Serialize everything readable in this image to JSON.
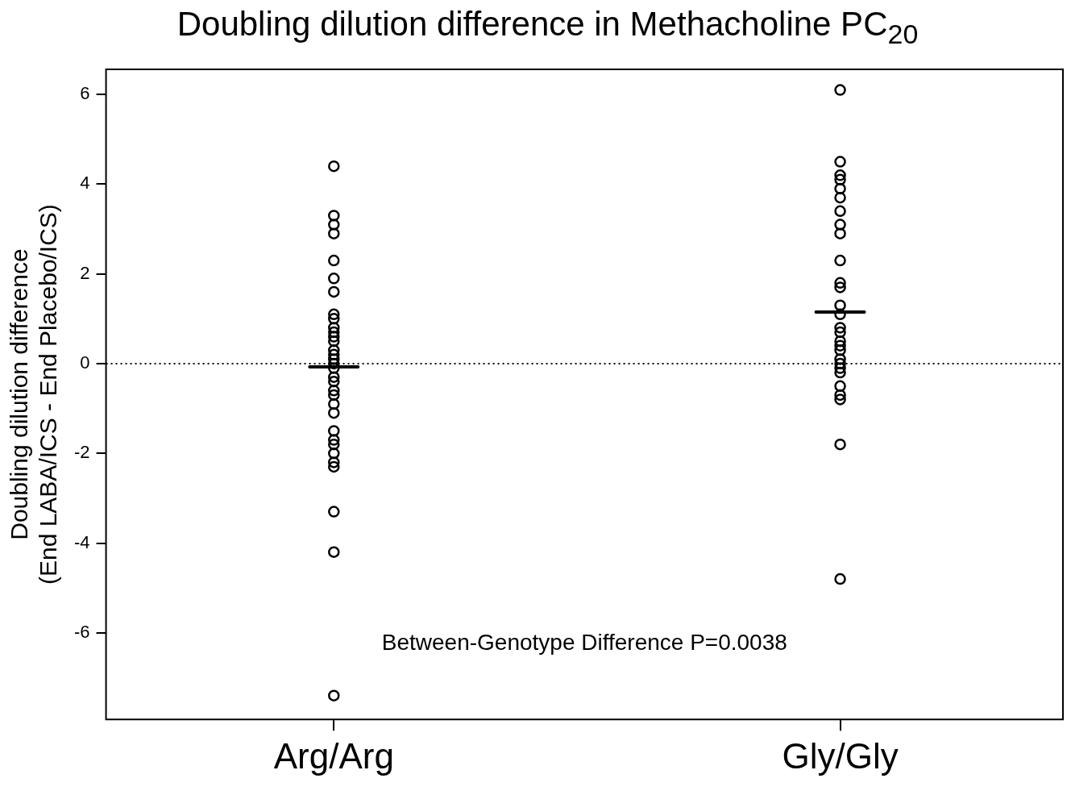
{
  "chart_data": {
    "type": "scatter",
    "title": "Doubling dilution difference in Methacholine PC$_{20}$",
    "ylabel": "Doubling dilution difference\n(End LABA/ICS - End Placebo/ICS)",
    "categories": [
      "Arg/Arg",
      "Gly/Gly"
    ],
    "ylim": [
      -7.93,
      6.56
    ],
    "yticks": [
      -6,
      -4,
      -2,
      0,
      2,
      4,
      6
    ],
    "grid": false,
    "legend": false,
    "series": [
      {
        "color": "#000000",
        "marker": "circle",
        "x": [
          "Arg/Arg",
          "Arg/Arg",
          "Arg/Arg",
          "Arg/Arg",
          "Arg/Arg",
          "Arg/Arg",
          "Arg/Arg",
          "Arg/Arg",
          "Arg/Arg",
          "Arg/Arg",
          "Arg/Arg",
          "Arg/Arg",
          "Arg/Arg",
          "Arg/Arg",
          "Arg/Arg",
          "Arg/Arg",
          "Arg/Arg",
          "Arg/Arg",
          "Arg/Arg",
          "Arg/Arg",
          "Arg/Arg",
          "Arg/Arg",
          "Arg/Arg",
          "Arg/Arg",
          "Arg/Arg",
          "Arg/Arg",
          "Arg/Arg",
          "Arg/Arg",
          "Arg/Arg",
          "Arg/Arg",
          "Arg/Arg",
          "Arg/Arg",
          "Arg/Arg",
          "Gly/Gly",
          "Gly/Gly",
          "Gly/Gly",
          "Gly/Gly",
          "Gly/Gly",
          "Gly/Gly",
          "Gly/Gly",
          "Gly/Gly",
          "Gly/Gly",
          "Gly/Gly",
          "Gly/Gly",
          "Gly/Gly",
          "Gly/Gly",
          "Gly/Gly",
          "Gly/Gly",
          "Gly/Gly",
          "Gly/Gly",
          "Gly/Gly",
          "Gly/Gly",
          "Gly/Gly",
          "Gly/Gly",
          "Gly/Gly",
          "Gly/Gly",
          "Gly/Gly",
          "Gly/Gly",
          "Gly/Gly",
          "Gly/Gly",
          "Gly/Gly"
        ],
        "values": [
          4.4,
          3.3,
          3.1,
          2.9,
          2.3,
          1.9,
          1.6,
          1.1,
          1.0,
          0.8,
          0.7,
          0.6,
          0.5,
          0.3,
          0.2,
          0.1,
          0,
          -0.1,
          -0.3,
          -0.4,
          -0.6,
          -0.7,
          -0.9,
          -1.1,
          -1.5,
          -1.7,
          -1.8,
          -2.0,
          -2.2,
          -2.3,
          -3.3,
          -4.2,
          -7.4,
          6.1,
          4.5,
          4.2,
          4.1,
          3.9,
          3.7,
          3.4,
          3.1,
          2.9,
          2.3,
          1.8,
          1.7,
          1.3,
          1.1,
          0.8,
          0.7,
          0.5,
          0.4,
          0.3,
          0.1,
          0,
          -0.1,
          -0.2,
          -0.5,
          -0.7,
          -0.8,
          -1.8,
          -4.8
        ]
      },
      {
        "type": "box",
        "color": "#000000",
        "boxes": [
          {
            "low": -0.07,
            "q1": -0.07,
            "median": -0.07,
            "q3": -0.07,
            "high": -0.07
          },
          {
            "low": 1.15,
            "q1": 1.15,
            "median": 1.15,
            "q3": 1.15,
            "high": 1.15
          }
        ]
      }
    ],
    "ref_lines": [
      {
        "axis": "y",
        "value": 0,
        "line_style": "dotted",
        "color": "#000000"
      }
    ],
    "annotations": [
      "Between-Genotype Difference P=0.0038"
    ]
  }
}
